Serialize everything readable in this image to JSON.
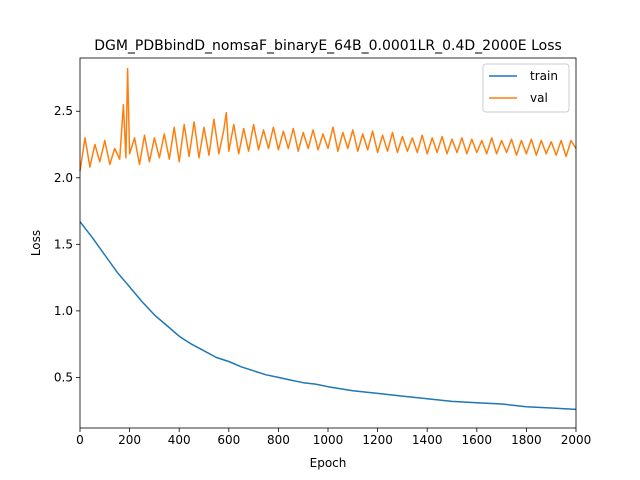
{
  "chart_data": {
    "type": "line",
    "title": "DGM_PDBbindD_nomsaF_binaryE_64B_0.0001LR_0.4D_2000E Loss",
    "xlabel": "Epoch",
    "ylabel": "Loss",
    "xlim": [
      0,
      2000
    ],
    "ylim": [
      0.12,
      2.9
    ],
    "xticks": [
      0,
      200,
      400,
      600,
      800,
      1000,
      1200,
      1400,
      1600,
      1800,
      2000
    ],
    "yticks": [
      0.5,
      1.0,
      1.5,
      2.0,
      2.5
    ],
    "xtick_labels": [
      "0",
      "200",
      "400",
      "600",
      "800",
      "1000",
      "1200",
      "1400",
      "1600",
      "1800",
      "2000"
    ],
    "ytick_labels": [
      "0.5",
      "1.0",
      "1.5",
      "2.0",
      "2.5"
    ],
    "grid": false,
    "legend_position": "top-right",
    "series": [
      {
        "name": "train",
        "color": "#1f77b4",
        "x": [
          0,
          50,
          100,
          150,
          200,
          250,
          300,
          350,
          400,
          450,
          500,
          550,
          600,
          650,
          700,
          750,
          800,
          850,
          900,
          950,
          1000,
          1100,
          1200,
          1300,
          1400,
          1500,
          1600,
          1700,
          1800,
          1900,
          2000
        ],
        "values": [
          1.67,
          1.55,
          1.42,
          1.29,
          1.18,
          1.07,
          0.97,
          0.89,
          0.81,
          0.75,
          0.7,
          0.65,
          0.62,
          0.58,
          0.55,
          0.52,
          0.5,
          0.48,
          0.46,
          0.45,
          0.43,
          0.4,
          0.38,
          0.36,
          0.34,
          0.32,
          0.31,
          0.3,
          0.28,
          0.27,
          0.26
        ]
      },
      {
        "name": "val",
        "color": "#ff7f0e",
        "x": [
          0,
          20,
          40,
          60,
          80,
          100,
          120,
          140,
          160,
          175,
          185,
          192,
          200,
          220,
          240,
          260,
          280,
          300,
          320,
          340,
          360,
          380,
          400,
          420,
          440,
          460,
          480,
          500,
          520,
          540,
          560,
          580,
          590,
          600,
          620,
          640,
          660,
          680,
          700,
          720,
          740,
          760,
          780,
          800,
          820,
          840,
          860,
          880,
          900,
          920,
          940,
          960,
          980,
          1000,
          1020,
          1040,
          1060,
          1080,
          1100,
          1120,
          1140,
          1160,
          1180,
          1200,
          1220,
          1240,
          1260,
          1280,
          1300,
          1320,
          1340,
          1360,
          1380,
          1400,
          1420,
          1440,
          1460,
          1480,
          1500,
          1520,
          1540,
          1560,
          1580,
          1600,
          1620,
          1640,
          1660,
          1680,
          1700,
          1720,
          1740,
          1760,
          1780,
          1800,
          1820,
          1840,
          1860,
          1880,
          1900,
          1920,
          1940,
          1960,
          1980,
          2000
        ],
        "values": [
          2.05,
          2.3,
          2.08,
          2.25,
          2.12,
          2.28,
          2.1,
          2.22,
          2.14,
          2.55,
          2.15,
          2.82,
          2.18,
          2.3,
          2.1,
          2.32,
          2.12,
          2.3,
          2.15,
          2.33,
          2.14,
          2.38,
          2.12,
          2.4,
          2.16,
          2.42,
          2.15,
          2.38,
          2.17,
          2.44,
          2.18,
          2.36,
          2.49,
          2.2,
          2.4,
          2.18,
          2.37,
          2.2,
          2.4,
          2.21,
          2.36,
          2.22,
          2.38,
          2.21,
          2.35,
          2.22,
          2.37,
          2.2,
          2.34,
          2.22,
          2.36,
          2.21,
          2.33,
          2.22,
          2.38,
          2.2,
          2.34,
          2.22,
          2.36,
          2.2,
          2.33,
          2.21,
          2.35,
          2.19,
          2.32,
          2.2,
          2.34,
          2.19,
          2.31,
          2.2,
          2.3,
          2.19,
          2.32,
          2.18,
          2.3,
          2.19,
          2.31,
          2.18,
          2.29,
          2.19,
          2.3,
          2.18,
          2.29,
          2.19,
          2.28,
          2.18,
          2.3,
          2.18,
          2.28,
          2.19,
          2.29,
          2.17,
          2.28,
          2.18,
          2.29,
          2.17,
          2.28,
          2.18,
          2.27,
          2.17,
          2.28,
          2.16,
          2.28,
          2.22
        ]
      }
    ]
  }
}
